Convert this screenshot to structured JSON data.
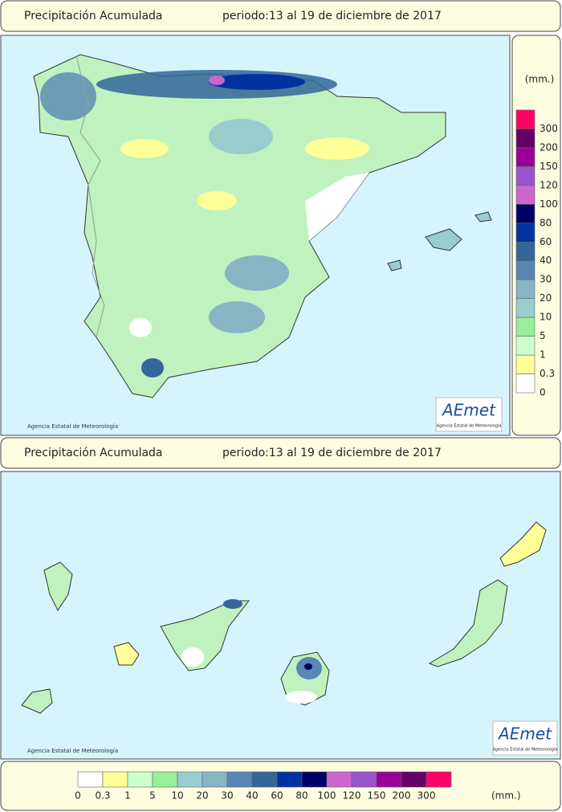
{
  "panels": [
    {
      "title": "Precipitación Acumulada",
      "period": "periodo:13 al 19 de diciembre de 2017",
      "credit": "Agencia Estatal de Meteorología",
      "logo": "AEmet",
      "logo_sub": "Agencia Estatal de Meteorología"
    },
    {
      "title": "Precipitación Acumulada",
      "period": "periodo:13 al 19 de diciembre de 2017",
      "credit": "Agencia Estatal de Meteorología",
      "logo": "AEmet",
      "logo_sub": "Agencia Estatal de Meteorología"
    }
  ],
  "legend": {
    "unit": "(mm.)",
    "thresholds": [
      0,
      0.3,
      1,
      5,
      10,
      20,
      30,
      40,
      60,
      80,
      100,
      120,
      150,
      200,
      300
    ],
    "colors": [
      "#ffffff",
      "#ffff99",
      "#ccffcc",
      "#99ee99",
      "#99cccc",
      "#88b4c4",
      "#5a86b4",
      "#336699",
      "#0033a0",
      "#000066",
      "#cc66cc",
      "#9955cc",
      "#990099",
      "#660066",
      "#ff0066"
    ]
  }
}
